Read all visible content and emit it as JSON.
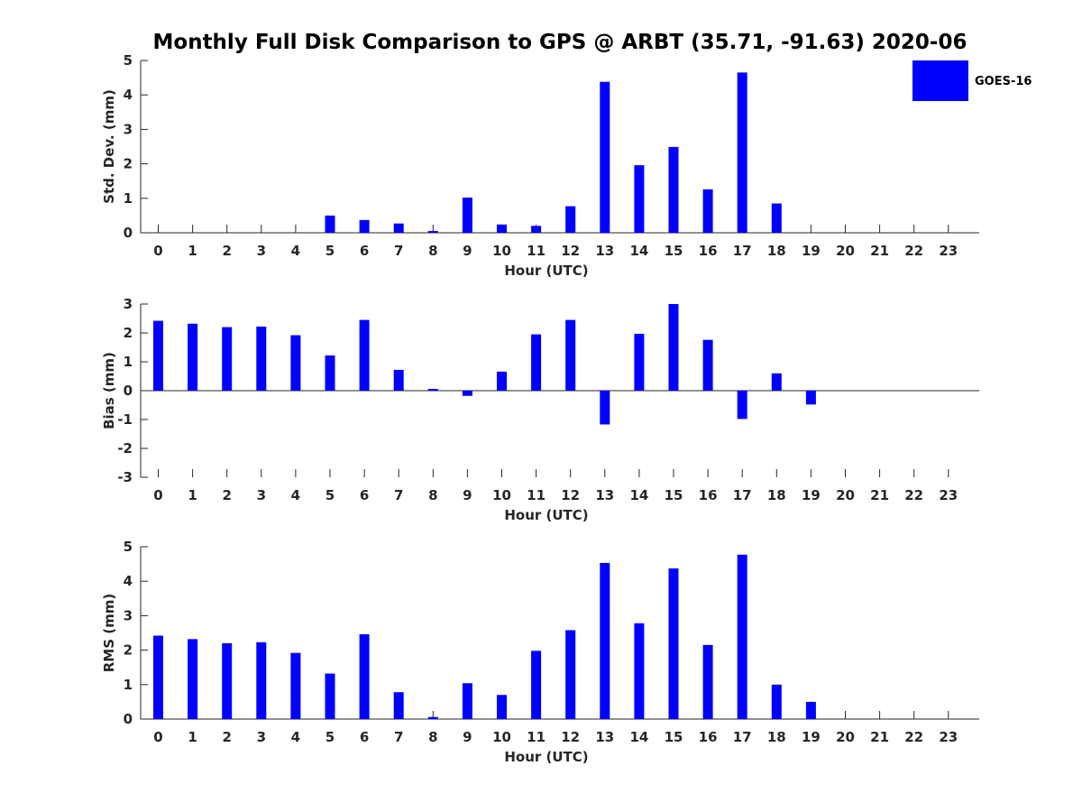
{
  "title": "Monthly Full Disk Comparison to GPS @ ARBT (35.71, -91.63) 2020-06",
  "legend": {
    "label": "GOES-16",
    "color": "#0000ff"
  },
  "chart_data": [
    {
      "type": "bar",
      "xlabel": "Hour (UTC)",
      "ylabel": "Std. Dev. (mm)",
      "ylim": [
        0,
        5
      ],
      "yticks": [
        0,
        1,
        2,
        3,
        4,
        5
      ],
      "categories": [
        "0",
        "1",
        "2",
        "3",
        "4",
        "5",
        "6",
        "7",
        "8",
        "9",
        "10",
        "11",
        "12",
        "13",
        "14",
        "15",
        "16",
        "17",
        "18",
        "19",
        "20",
        "21",
        "22",
        "23"
      ],
      "series": [
        {
          "name": "GOES-16",
          "values": [
            null,
            null,
            null,
            null,
            null,
            0.5,
            0.37,
            0.27,
            0.05,
            1.02,
            0.24,
            0.2,
            0.77,
            4.38,
            1.96,
            2.49,
            1.26,
            4.65,
            0.85,
            null,
            null,
            null,
            null,
            null
          ]
        }
      ]
    },
    {
      "type": "bar",
      "xlabel": "Hour (UTC)",
      "ylabel": "Bias (mm)",
      "ylim": [
        -3,
        3
      ],
      "yticks": [
        -3,
        -2,
        -1,
        0,
        1,
        2,
        3
      ],
      "categories": [
        "0",
        "1",
        "2",
        "3",
        "4",
        "5",
        "6",
        "7",
        "8",
        "9",
        "10",
        "11",
        "12",
        "13",
        "14",
        "15",
        "16",
        "17",
        "18",
        "19",
        "20",
        "21",
        "22",
        "23"
      ],
      "series": [
        {
          "name": "GOES-16",
          "values": [
            2.42,
            2.32,
            2.2,
            2.22,
            1.92,
            1.22,
            2.45,
            0.72,
            0.06,
            -0.18,
            0.66,
            1.95,
            2.45,
            -1.17,
            1.97,
            3.0,
            1.76,
            -0.98,
            0.6,
            -0.48,
            null,
            null,
            null,
            null
          ]
        }
      ]
    },
    {
      "type": "bar",
      "xlabel": "Hour (UTC)",
      "ylabel": "RMS (mm)",
      "ylim": [
        0,
        5
      ],
      "yticks": [
        0,
        1,
        2,
        3,
        4,
        5
      ],
      "categories": [
        "0",
        "1",
        "2",
        "3",
        "4",
        "5",
        "6",
        "7",
        "8",
        "9",
        "10",
        "11",
        "12",
        "13",
        "14",
        "15",
        "16",
        "17",
        "18",
        "19",
        "20",
        "21",
        "22",
        "23"
      ],
      "series": [
        {
          "name": "GOES-16",
          "values": [
            2.42,
            2.32,
            2.2,
            2.23,
            1.92,
            1.32,
            2.46,
            0.78,
            0.06,
            1.04,
            0.7,
            1.98,
            2.58,
            4.53,
            2.78,
            4.37,
            2.15,
            4.77,
            1.0,
            0.5,
            null,
            null,
            null,
            null
          ]
        }
      ]
    }
  ]
}
